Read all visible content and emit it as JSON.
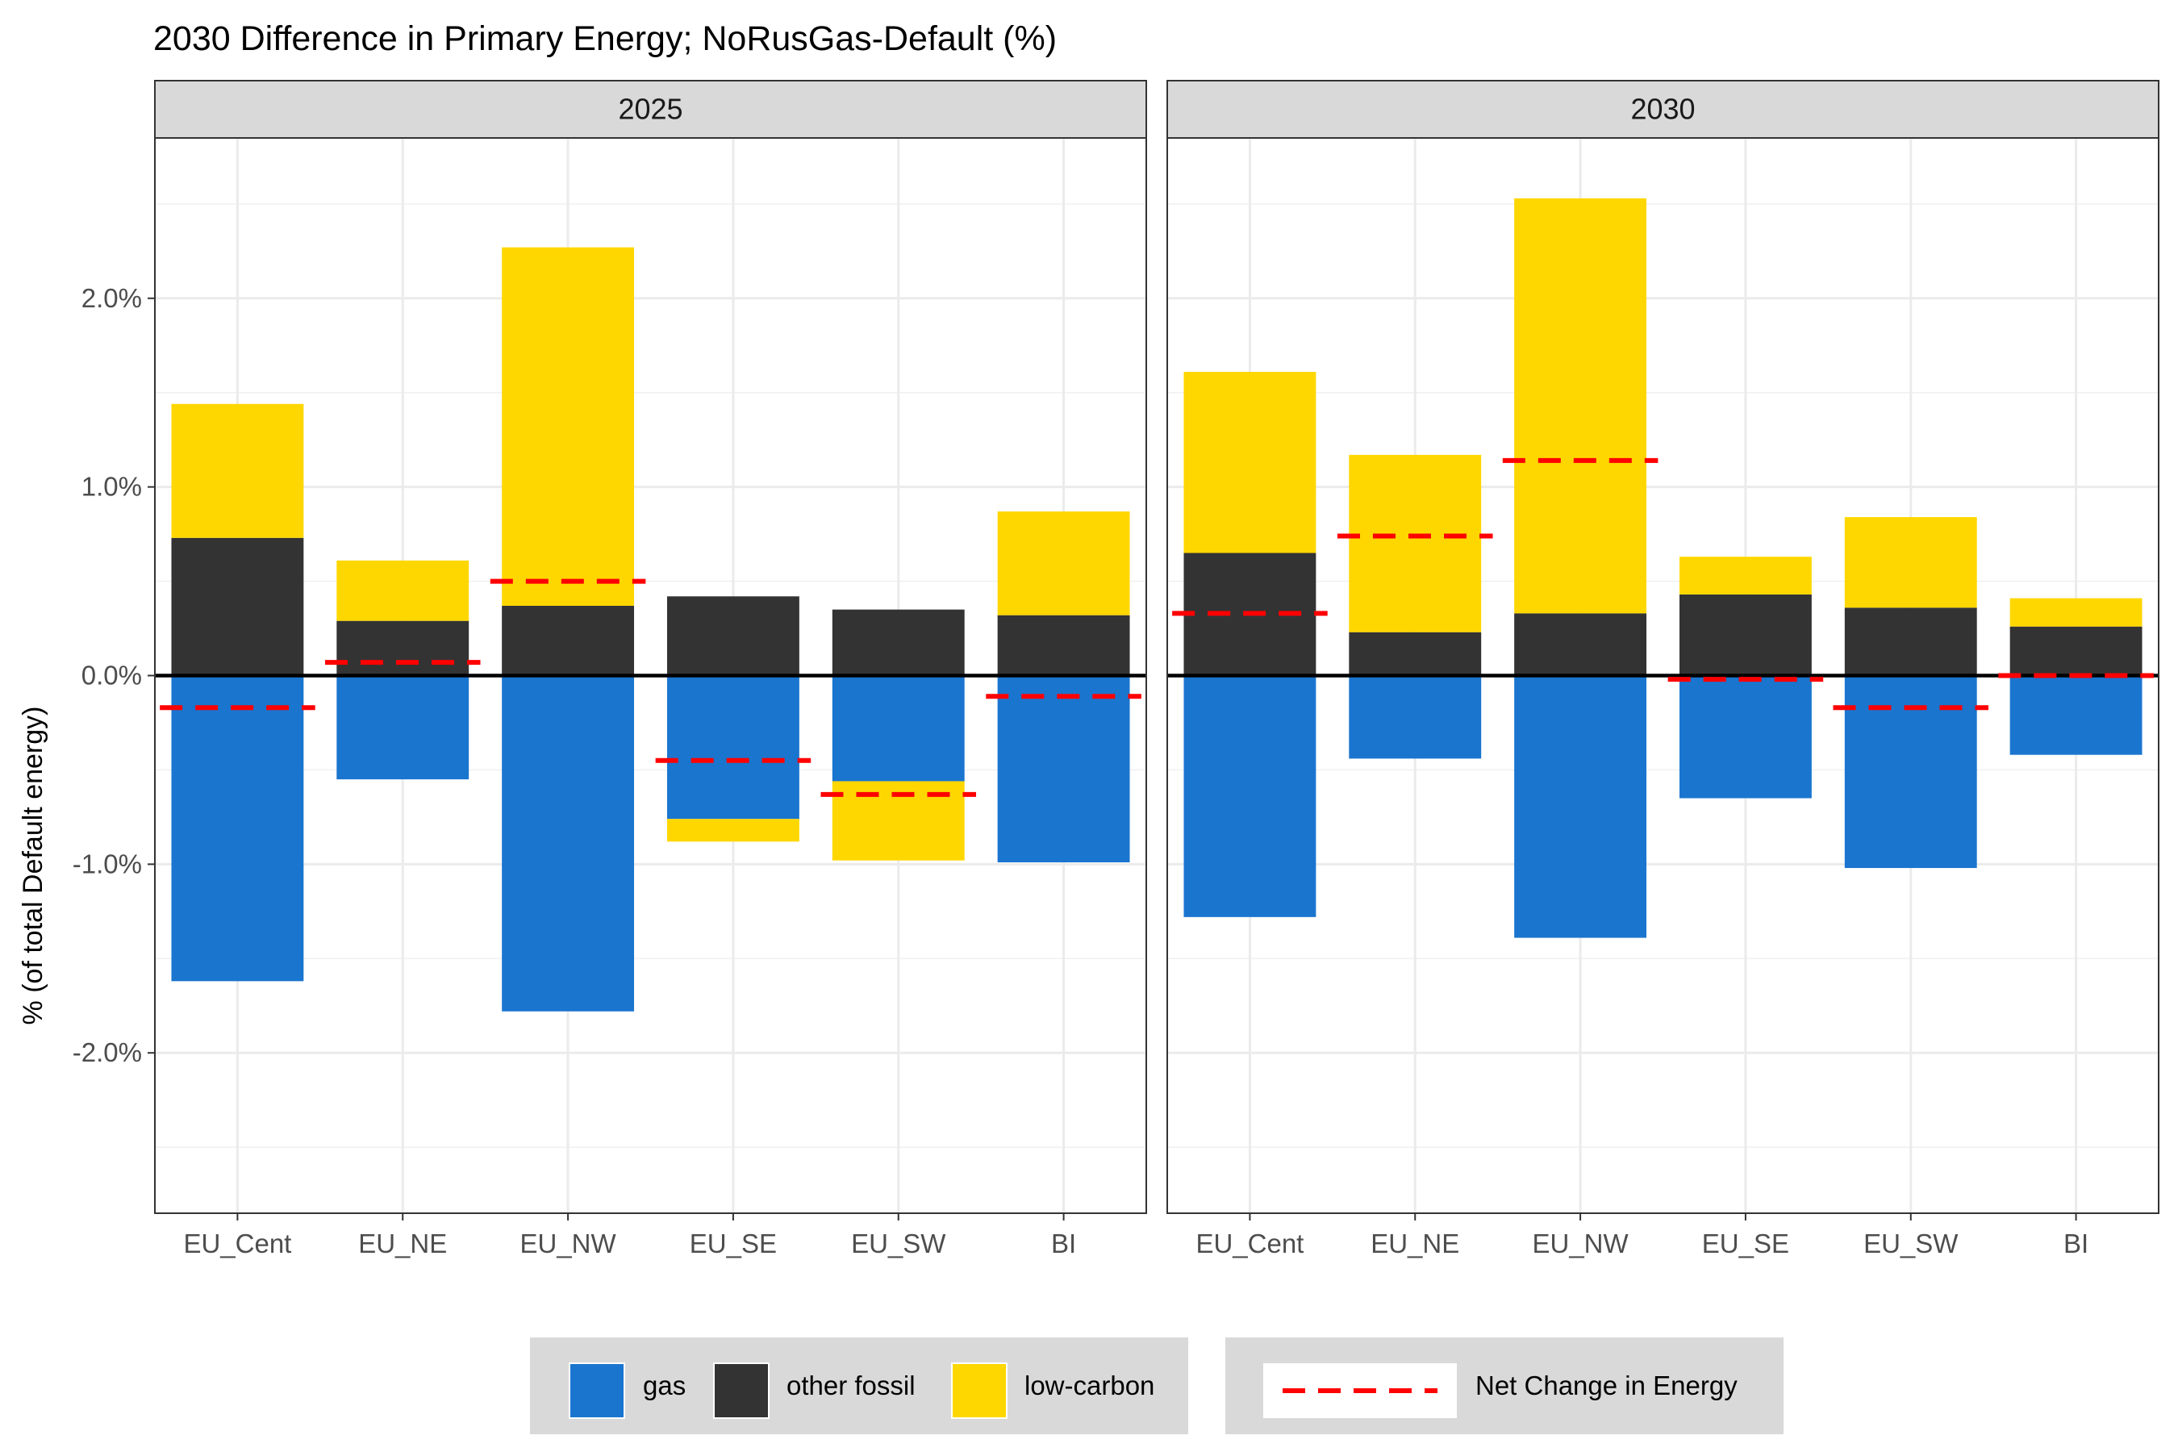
{
  "chart_data": {
    "type": "bar",
    "title": "2030 Difference in Primary Energy; NoRusGas-Default (%)",
    "xlabel": "",
    "ylabel": "% (of total Default energy)",
    "ylim": [
      -2.85,
      2.85
    ],
    "yticks": [
      -2.0,
      -1.0,
      0.0,
      1.0,
      2.0
    ],
    "ytick_labels": [
      "-2.0%",
      "-1.0%",
      "0.0%",
      "1.0%",
      "2.0%"
    ],
    "categories": [
      "EU_Cent",
      "EU_NE",
      "EU_NW",
      "EU_SE",
      "EU_SW",
      "BI"
    ],
    "grid": true,
    "legend_position": "bottom",
    "colors": {
      "gas": "#1a75cf",
      "other fossil": "#333333",
      "low-carbon": "#ffd700",
      "net": "#ff0000"
    },
    "panels": [
      {
        "label": "2025",
        "series": [
          {
            "name": "gas",
            "values": [
              -1.62,
              -0.55,
              -1.78,
              -0.76,
              -0.56,
              -0.99
            ]
          },
          {
            "name": "other fossil",
            "values": [
              0.73,
              0.29,
              0.37,
              0.42,
              0.35,
              0.32
            ]
          },
          {
            "name": "low-carbon",
            "values": [
              0.71,
              0.32,
              1.9,
              -0.12,
              -0.42,
              0.55
            ]
          }
        ],
        "net_change": [
          -0.17,
          0.07,
          0.5,
          -0.45,
          -0.63,
          -0.11
        ]
      },
      {
        "label": "2030",
        "series": [
          {
            "name": "gas",
            "values": [
              -1.28,
              -0.44,
              -1.39,
              -0.65,
              -1.02,
              -0.42
            ]
          },
          {
            "name": "other fossil",
            "values": [
              0.65,
              0.23,
              0.33,
              0.43,
              0.36,
              0.26
            ]
          },
          {
            "name": "low-carbon",
            "values": [
              0.96,
              0.94,
              2.2,
              0.2,
              0.48,
              0.15
            ]
          }
        ],
        "net_change": [
          0.33,
          0.74,
          1.14,
          -0.02,
          -0.17,
          0.0
        ]
      }
    ],
    "legend": {
      "fill_items": [
        "gas",
        "other fossil",
        "low-carbon"
      ],
      "line_item": "Net Change in Energy"
    }
  }
}
